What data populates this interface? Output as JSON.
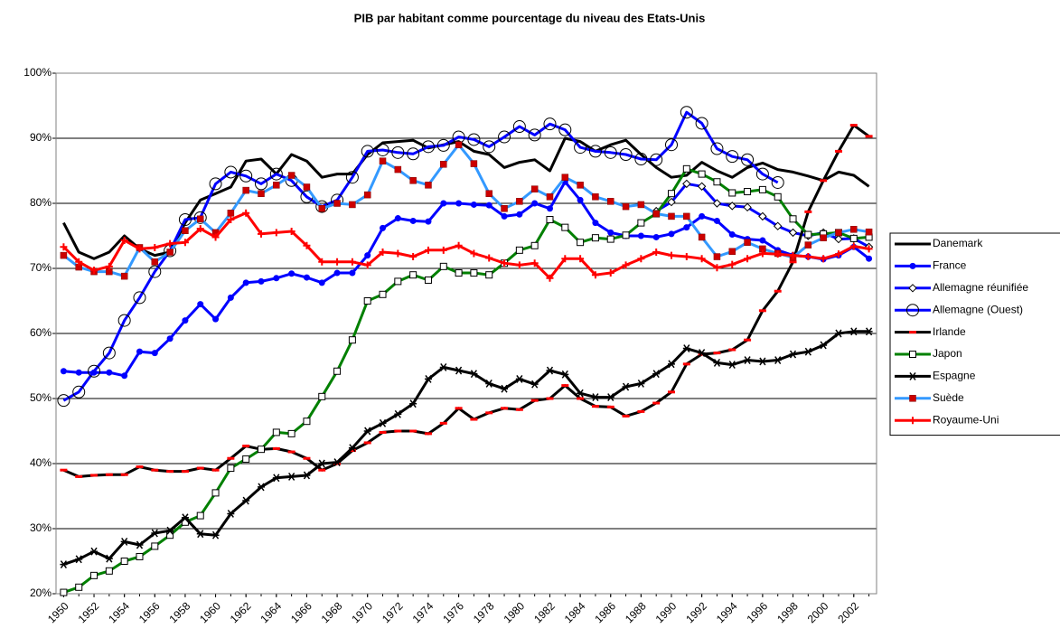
{
  "chart_data": {
    "type": "line",
    "title": "PIB par habitant comme pourcentage du niveau des Etats-Unis",
    "x": [
      1950,
      1951,
      1952,
      1953,
      1954,
      1955,
      1956,
      1957,
      1958,
      1959,
      1960,
      1961,
      1962,
      1963,
      1964,
      1965,
      1966,
      1967,
      1968,
      1969,
      1970,
      1971,
      1972,
      1973,
      1974,
      1975,
      1976,
      1977,
      1978,
      1979,
      1980,
      1981,
      1982,
      1983,
      1984,
      1985,
      1986,
      1987,
      1988,
      1989,
      1990,
      1991,
      1992,
      1993,
      1994,
      1995,
      1996,
      1997,
      1998,
      1999,
      2000,
      2001,
      2002,
      2003
    ],
    "xlim": [
      1949.5,
      2003.5
    ],
    "xticks": [
      1950,
      1952,
      1954,
      1956,
      1958,
      1960,
      1962,
      1964,
      1966,
      1968,
      1970,
      1972,
      1974,
      1976,
      1978,
      1980,
      1982,
      1984,
      1986,
      1988,
      1990,
      1992,
      1994,
      1996,
      1998,
      2000,
      2002
    ],
    "ylim": [
      20,
      100
    ],
    "yticks": [
      {
        "value": 20,
        "label": "20%"
      },
      {
        "value": 30,
        "label": "30%"
      },
      {
        "value": 40,
        "label": "40%"
      },
      {
        "value": 50,
        "label": "50%"
      },
      {
        "value": 60,
        "label": "60%"
      },
      {
        "value": 70,
        "label": "70%"
      },
      {
        "value": 80,
        "label": "80%"
      },
      {
        "value": 90,
        "label": "90%"
      },
      {
        "value": 100,
        "label": "100%"
      }
    ],
    "grid": true,
    "legend": "right",
    "series": [
      {
        "name": "Danemark",
        "color": "#000000",
        "marker": "none",
        "marker_color": "#000000",
        "values": [
          77,
          72.5,
          71.5,
          72.5,
          75,
          73,
          72,
          72.5,
          77,
          80.5,
          81.5,
          82.5,
          86.5,
          86.8,
          84.5,
          87.5,
          86.5,
          84,
          84.5,
          84.5,
          87.5,
          89.3,
          89.5,
          89.7,
          88.5,
          89,
          89.5,
          88,
          87.5,
          85.5,
          86.3,
          86.7,
          85,
          90,
          89.5,
          88,
          89,
          89.7,
          87.5,
          85.5,
          84,
          84.3,
          86.3,
          85,
          84,
          85.5,
          86.2,
          85.2,
          84.8,
          84.2,
          83.5,
          84.8,
          84.3,
          82.6
        ]
      },
      {
        "name": "France",
        "color": "#0000ff",
        "marker": "dot",
        "marker_color": "#0000ff",
        "values": [
          54.2,
          54,
          54,
          54,
          53.5,
          57.2,
          57,
          59.2,
          62,
          64.5,
          62.2,
          65.5,
          67.8,
          68,
          68.5,
          69.2,
          68.6,
          67.8,
          69.3,
          69.3,
          72,
          76.2,
          77.7,
          77.3,
          77.2,
          80,
          80,
          79.8,
          79.7,
          78,
          78.3,
          80,
          79.2,
          83.3,
          80.5,
          77,
          75.5,
          75,
          75,
          74.8,
          75.3,
          76.3,
          78,
          77.3,
          75.2,
          74.5,
          74.3,
          72.8,
          72,
          71.8,
          71.4,
          72,
          73.3,
          71.5
        ]
      },
      {
        "name": "Allemagne réunifiée",
        "color": "#0000ff",
        "marker": "diamond",
        "marker_color": "#000000",
        "values": [
          null,
          null,
          null,
          null,
          null,
          null,
          null,
          null,
          null,
          null,
          null,
          null,
          null,
          null,
          null,
          null,
          null,
          null,
          null,
          null,
          null,
          null,
          null,
          null,
          null,
          null,
          null,
          null,
          null,
          null,
          null,
          null,
          null,
          null,
          null,
          null,
          null,
          null,
          null,
          78.8,
          80.2,
          83,
          82.6,
          80,
          79.6,
          79.4,
          78,
          76.5,
          75.5,
          75,
          75.5,
          74.5,
          74.6,
          73.3
        ]
      },
      {
        "name": "Allemagne (Ouest)",
        "color": "#0000ff",
        "marker": "ring",
        "marker_color": "#000000",
        "values": [
          49.7,
          51,
          54.2,
          57,
          62,
          65.5,
          69.5,
          72.7,
          77.5,
          77.8,
          83,
          84.8,
          84.2,
          83,
          84.5,
          83.5,
          81,
          79.5,
          80.5,
          84,
          88,
          88.2,
          87.8,
          87.6,
          88.7,
          88.9,
          90.2,
          89.8,
          88.7,
          90.2,
          91.8,
          90.5,
          92.2,
          91.3,
          88.6,
          88,
          87.8,
          87.5,
          86.8,
          86.7,
          89,
          94,
          92.3,
          88.4,
          87.2,
          86.7,
          84.5,
          83.2,
          null,
          null,
          null,
          null,
          null,
          null
        ]
      },
      {
        "name": "Irlande",
        "color": "#000000",
        "marker": "dash",
        "marker_color": "#ff0000",
        "values": [
          39,
          38,
          38.2,
          38.3,
          38.3,
          39.5,
          39,
          38.8,
          38.8,
          39.3,
          39,
          40.8,
          42.7,
          42.2,
          42.3,
          41.8,
          40.8,
          39,
          40,
          42,
          43.2,
          44.8,
          45,
          45,
          44.6,
          46.2,
          48.5,
          46.8,
          47.8,
          48.5,
          48.3,
          49.7,
          50,
          52,
          50,
          48.8,
          48.7,
          47.3,
          48,
          49.3,
          51,
          55.3,
          56.8,
          57,
          57.5,
          59,
          63.5,
          66.5,
          71,
          78.7,
          83.5,
          88,
          92,
          90.3
        ]
      },
      {
        "name": "Japon",
        "color": "#008000",
        "marker": "square-open",
        "marker_color": "#000000",
        "values": [
          20.2,
          21,
          22.8,
          23.5,
          25,
          25.7,
          27.3,
          29,
          31,
          32,
          35.5,
          39.3,
          40.7,
          42.2,
          44.8,
          44.6,
          46.5,
          50.3,
          54.2,
          59,
          65,
          66,
          68,
          69,
          68.2,
          70.3,
          69.3,
          69.3,
          69,
          70.8,
          72.8,
          73.5,
          77.5,
          76.3,
          74,
          74.7,
          74.5,
          75.1,
          77,
          78.4,
          81.5,
          85.3,
          84.5,
          83.3,
          81.6,
          81.8,
          82.1,
          81,
          77.6,
          75.2,
          75.3,
          75.5,
          74.6,
          74.8
        ]
      },
      {
        "name": "Espagne",
        "color": "#000000",
        "marker": "star",
        "marker_color": "#000000",
        "values": [
          24.5,
          25.3,
          26.5,
          25.4,
          28,
          27.5,
          29.3,
          29.7,
          31.7,
          29.2,
          29,
          32.3,
          34.3,
          36.4,
          37.8,
          38,
          38.2,
          40,
          40.2,
          42.4,
          45,
          46.2,
          47.6,
          49.2,
          53,
          54.8,
          54.3,
          53.8,
          52.3,
          51.5,
          53,
          52.2,
          54.3,
          53.7,
          50.8,
          50.2,
          50.2,
          51.8,
          52.3,
          53.8,
          55.3,
          57.7,
          57,
          55.5,
          55.2,
          55.9,
          55.7,
          55.9,
          56.8,
          57.2,
          58.2,
          60,
          60.3,
          60.3
        ]
      },
      {
        "name": "Suède",
        "color": "#3399ff",
        "marker": "square",
        "marker_color": "#cc0000",
        "values": [
          72,
          70.2,
          69.5,
          69.5,
          68.8,
          73.2,
          71,
          72.5,
          75.8,
          77.6,
          75.5,
          78.5,
          82,
          81.5,
          82.8,
          84.3,
          82.5,
          79.2,
          80,
          79.8,
          81.3,
          86.5,
          85.2,
          83.5,
          82.8,
          86,
          89,
          86.1,
          81.5,
          79.2,
          80.3,
          82.2,
          81,
          84,
          82.8,
          81,
          80.3,
          79.5,
          79.8,
          78.4,
          78,
          78,
          74.8,
          71.8,
          72.6,
          74,
          73,
          72.3,
          71.7,
          73.6,
          74.7,
          75.5,
          76,
          75.6
        ]
      },
      {
        "name": "Royaume-Uni",
        "color": "#ff0000",
        "marker": "plus",
        "marker_color": "#ff0000",
        "values": [
          73.3,
          71,
          69.7,
          70.3,
          74.3,
          73,
          73.2,
          73.8,
          74,
          76.1,
          74.8,
          77.5,
          78.5,
          75.3,
          75.5,
          75.7,
          73.5,
          71,
          71,
          71,
          70.5,
          72.5,
          72.3,
          71.8,
          72.8,
          72.8,
          73.5,
          72.3,
          71.6,
          70.8,
          70.5,
          70.8,
          68.5,
          71.5,
          71.5,
          69,
          69.3,
          70.5,
          71.5,
          72.5,
          72,
          71.8,
          71.5,
          70.1,
          70.6,
          71.5,
          72.3,
          72.2,
          72,
          71.8,
          71.5,
          72.2,
          73.4,
          73
        ]
      }
    ]
  }
}
